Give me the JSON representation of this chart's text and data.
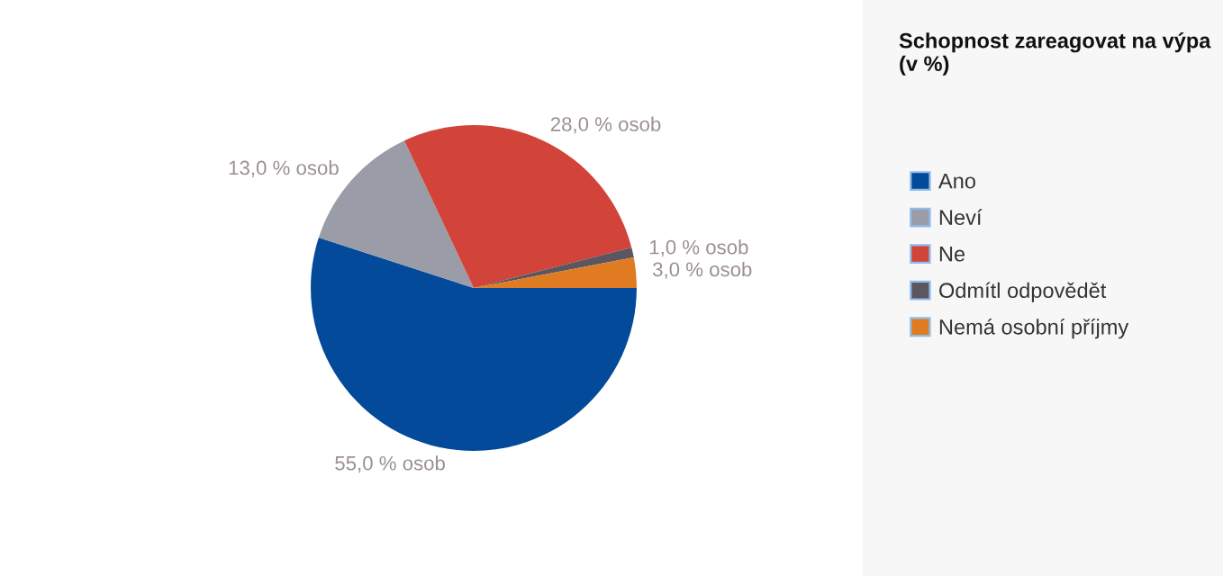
{
  "chart_data": {
    "type": "pie",
    "title": "Schopnost zareagovat na výpa\n(v %)",
    "categories": [
      "Ano",
      "Neví",
      "Ne",
      "Odmítl odpovědět",
      "Nemá osobní příjmy"
    ],
    "values": [
      55,
      13,
      28,
      1,
      3
    ],
    "colors": [
      "#034a9a",
      "#9a9ca8",
      "#d24439",
      "#5b5660",
      "#e07b22"
    ],
    "value_labels": [
      "55,0 % osob",
      "13,0 % osob",
      "28,0 % osob",
      "1,0 % osob",
      "3,0 % osob"
    ],
    "legend": "right"
  }
}
